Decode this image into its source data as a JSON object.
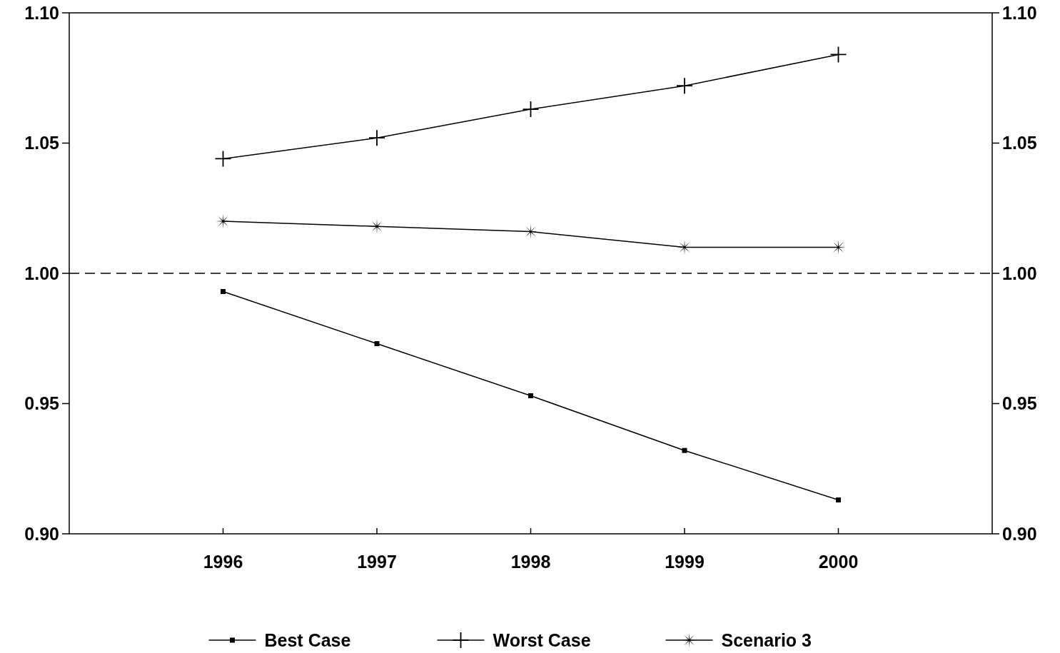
{
  "chart_data": {
    "type": "line",
    "categories": [
      "1996",
      "1997",
      "1998",
      "1999",
      "2000"
    ],
    "series": [
      {
        "name": "Best Case",
        "color": "#000000",
        "marker": "square",
        "values": [
          0.993,
          0.973,
          0.953,
          0.932,
          0.913
        ]
      },
      {
        "name": "Worst Case",
        "color": "#000000",
        "marker": "cross",
        "values": [
          1.044,
          1.052,
          1.063,
          1.072,
          1.084
        ]
      },
      {
        "name": "Scenario 3",
        "color": "#000000",
        "marker": "star",
        "values": [
          1.02,
          1.018,
          1.016,
          1.01,
          1.01
        ]
      }
    ],
    "ylim": [
      0.9,
      1.1
    ],
    "yticks": [
      {
        "value": 0.9,
        "label": "0.90"
      },
      {
        "value": 0.95,
        "label": "0.95"
      },
      {
        "value": 1.0,
        "label": "1.00"
      },
      {
        "value": 1.05,
        "label": "1.05"
      },
      {
        "value": 1.1,
        "label": "1.10"
      }
    ],
    "y2lim": [
      0.9,
      1.1
    ],
    "y2ticks": [
      {
        "value": 0.9,
        "label": "0.90"
      },
      {
        "value": 0.95,
        "label": "0.95"
      },
      {
        "value": 1.0,
        "label": "1.00"
      },
      {
        "value": 1.05,
        "label": "1.05"
      },
      {
        "value": 1.1,
        "label": "1.10"
      }
    ],
    "ref_lines": [
      {
        "axis": "y",
        "value": 1.0,
        "line_style": "dashed",
        "color": "#000000"
      }
    ],
    "grid": false,
    "legend": "bottom",
    "line_style": "solid"
  }
}
